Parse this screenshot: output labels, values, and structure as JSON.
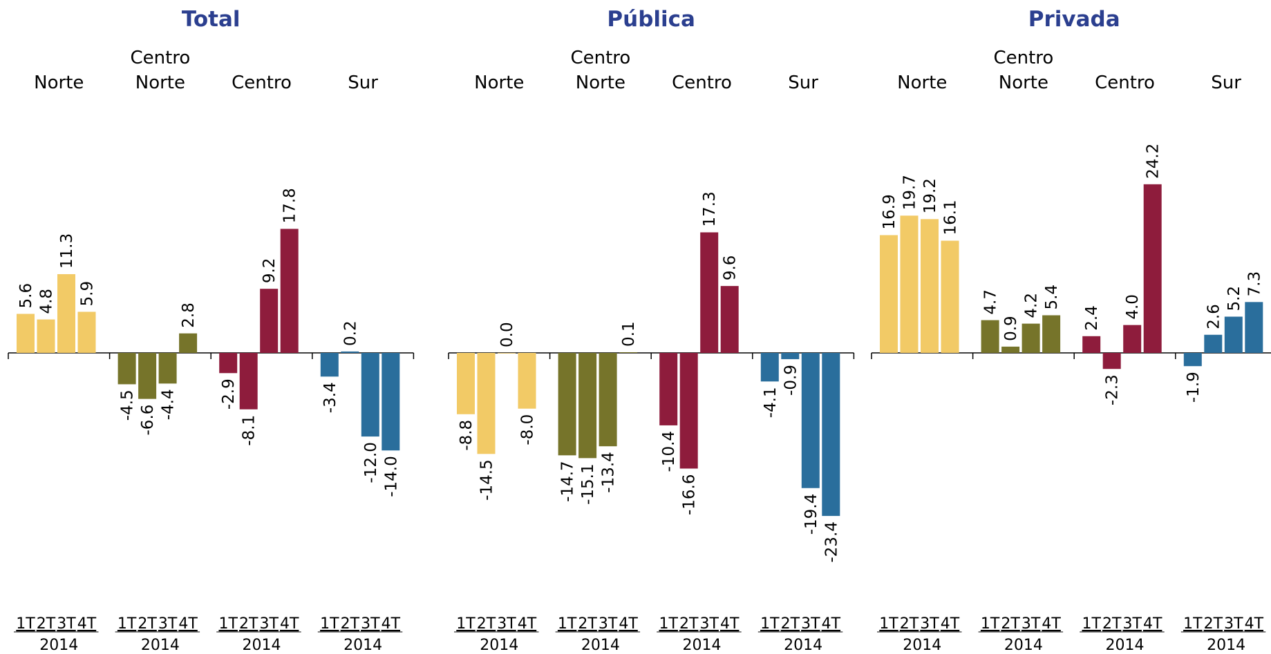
{
  "chart_data": [
    {
      "type": "bar",
      "title": "Total",
      "categories": [
        "1T",
        "2T",
        "3T",
        "4T"
      ],
      "period": "2014",
      "ylim": [
        -25,
        30
      ],
      "series": [
        {
          "name": "Norte",
          "color": "#f2ca66",
          "values": [
            5.6,
            4.8,
            11.3,
            5.9
          ],
          "value_labels": [
            "5.6",
            "4.8",
            "11.3",
            "5.9"
          ]
        },
        {
          "name": "Centro Norte",
          "color": "#76742a",
          "values": [
            -4.5,
            -6.6,
            -4.4,
            2.8
          ],
          "value_labels": [
            "-4.5",
            "-6.6",
            "-4.4",
            "2.8"
          ]
        },
        {
          "name": "Centro",
          "color": "#8e1c3c",
          "values": [
            -2.9,
            -8.1,
            9.2,
            17.8
          ],
          "value_labels": [
            "-2.9",
            "-8.1",
            "9.2",
            "17.8"
          ]
        },
        {
          "name": "Sur",
          "color": "#2a6e9c",
          "values": [
            -3.4,
            0.2,
            -12.0,
            -14.0
          ],
          "value_labels": [
            "-3.4",
            "0.2",
            "-12.0",
            "-14.0"
          ]
        }
      ]
    },
    {
      "type": "bar",
      "title": "Pública",
      "categories": [
        "1T",
        "2T",
        "3T",
        "4T"
      ],
      "period": "2014",
      "ylim": [
        -25,
        30
      ],
      "series": [
        {
          "name": "Norte",
          "color": "#f2ca66",
          "values": [
            -8.8,
            -14.5,
            0.0,
            -8.0
          ],
          "value_labels": [
            "-8.8",
            "-14.5",
            "0.0",
            "-8.0"
          ]
        },
        {
          "name": "Centro Norte",
          "color": "#76742a",
          "values": [
            -14.7,
            -15.1,
            -13.4,
            0.1
          ],
          "value_labels": [
            "-14.7",
            "-15.1",
            "-13.4",
            "0.1"
          ]
        },
        {
          "name": "Centro",
          "color": "#8e1c3c",
          "values": [
            -10.4,
            -16.6,
            17.3,
            9.6
          ],
          "value_labels": [
            "-10.4",
            "-16.6",
            "17.3",
            "9.6"
          ]
        },
        {
          "name": "Sur",
          "color": "#2a6e9c",
          "values": [
            -4.1,
            -0.9,
            -19.4,
            -23.4
          ],
          "value_labels": [
            "-4.1",
            "-0.9",
            "-19.4",
            "-23.4"
          ]
        }
      ]
    },
    {
      "type": "bar",
      "title": "Privada",
      "categories": [
        "1T",
        "2T",
        "3T",
        "4T"
      ],
      "period": "2014",
      "ylim": [
        -25,
        30
      ],
      "series": [
        {
          "name": "Norte",
          "color": "#f2ca66",
          "values": [
            16.9,
            19.7,
            19.2,
            16.1
          ],
          "value_labels": [
            "16.9",
            "19.7",
            "19.2",
            "16.1"
          ]
        },
        {
          "name": "Centro Norte",
          "color": "#76742a",
          "values": [
            4.7,
            0.9,
            4.2,
            5.4
          ],
          "value_labels": [
            "4.7",
            "0.9",
            "4.2",
            "5.4"
          ]
        },
        {
          "name": "Centro",
          "color": "#8e1c3c",
          "values": [
            2.4,
            -2.3,
            4.0,
            24.2
          ],
          "value_labels": [
            "2.4",
            "-2.3",
            "4.0",
            "24.2"
          ]
        },
        {
          "name": "Sur",
          "color": "#2a6e9c",
          "values": [
            -1.9,
            2.6,
            5.2,
            7.3
          ],
          "value_labels": [
            "-1.9",
            "2.6",
            "5.2",
            "7.3"
          ]
        }
      ]
    }
  ]
}
